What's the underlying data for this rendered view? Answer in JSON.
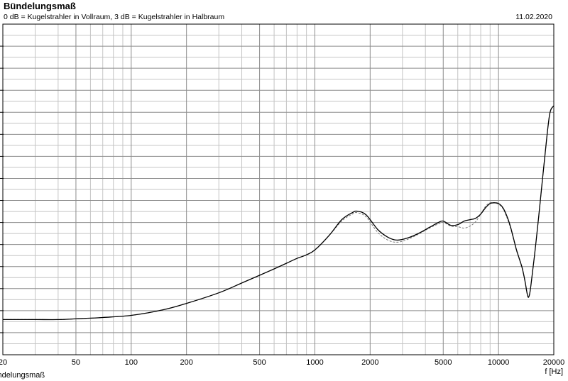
{
  "chart_data": {
    "type": "line",
    "title": "Bündelungsmaß",
    "subtitle": "0 dB = Kugelstrahler in Vollraum, 3 dB = Kugelstrahler in Halbraum",
    "date": "11.02.2020",
    "xlabel": "f [Hz]",
    "ylabel": "Bündelungsmaß",
    "x_scale": "log",
    "xlim": [
      20,
      20000
    ],
    "x_ticks": [
      {
        "value": 20,
        "label": "20"
      },
      {
        "value": 50,
        "label": "50"
      },
      {
        "value": 100,
        "label": "100"
      },
      {
        "value": 200,
        "label": "200"
      },
      {
        "value": 500,
        "label": "500"
      },
      {
        "value": 1000,
        "label": "1000"
      },
      {
        "value": 2000,
        "label": "2000"
      },
      {
        "value": 5000,
        "label": "5000"
      },
      {
        "value": 10000,
        "label": "10000"
      },
      {
        "value": 20000,
        "label": "20000"
      }
    ],
    "ylim": [
      -1.5,
      22
    ],
    "grid": true,
    "series": [
      {
        "style": "solid",
        "color": "#000000",
        "x": [
          20,
          30,
          40,
          50,
          70,
          100,
          150,
          200,
          300,
          400,
          500,
          600,
          700,
          800,
          900,
          1000,
          1200,
          1400,
          1600,
          1700,
          1900,
          2200,
          2500,
          2800,
          3200,
          3700,
          4200,
          4700,
          5000,
          5500,
          6000,
          6500,
          7000,
          7500,
          8000,
          8500,
          9000,
          9500,
          10000,
          10500,
          11000,
          11500,
          12000,
          12500,
          13000,
          13500,
          14000,
          14300,
          14600,
          15000,
          16000,
          17000,
          18000,
          19000,
          20000
        ],
        "y": [
          1.0,
          1.0,
          1.0,
          1.05,
          1.15,
          1.3,
          1.7,
          2.15,
          2.9,
          3.6,
          4.15,
          4.6,
          5.0,
          5.35,
          5.6,
          5.95,
          7.0,
          8.1,
          8.6,
          8.7,
          8.45,
          7.4,
          6.85,
          6.65,
          6.8,
          7.15,
          7.55,
          7.9,
          8.0,
          7.7,
          7.75,
          8.0,
          8.1,
          8.2,
          8.5,
          8.95,
          9.25,
          9.3,
          9.25,
          9.0,
          8.5,
          7.8,
          6.9,
          6.0,
          5.3,
          4.6,
          3.6,
          2.9,
          2.6,
          3.4,
          6.5,
          9.8,
          13.0,
          15.6,
          16.2
        ]
      },
      {
        "style": "dashed",
        "color": "#777777",
        "x": [
          20,
          30,
          40,
          50,
          70,
          100,
          150,
          200,
          300,
          400,
          500,
          600,
          700,
          800,
          900,
          1000,
          1200,
          1400,
          1600,
          1700,
          1900,
          2200,
          2500,
          2800,
          3200,
          3700,
          4200,
          4700,
          5000,
          5500,
          6000,
          6500,
          7000,
          7500,
          8000,
          8500,
          9000,
          9500,
          10000,
          10500,
          11000,
          11500,
          12000,
          12500,
          13000,
          13500,
          14000,
          14300,
          14600,
          15000,
          16000,
          17000,
          18000,
          19000,
          20000
        ],
        "y": [
          1.0,
          1.0,
          1.0,
          1.05,
          1.15,
          1.3,
          1.7,
          2.15,
          2.9,
          3.6,
          4.15,
          4.6,
          5.0,
          5.35,
          5.6,
          5.95,
          7.0,
          8.0,
          8.5,
          8.6,
          8.3,
          7.2,
          6.65,
          6.5,
          6.7,
          7.1,
          7.5,
          7.8,
          7.9,
          7.65,
          7.6,
          7.5,
          7.65,
          7.95,
          8.5,
          9.05,
          9.3,
          9.3,
          9.2,
          8.95,
          8.4,
          7.7,
          6.85,
          5.95,
          5.25,
          4.55,
          3.55,
          2.85,
          2.6,
          3.4,
          6.5,
          9.8,
          13.0,
          15.6,
          16.2
        ]
      }
    ]
  }
}
